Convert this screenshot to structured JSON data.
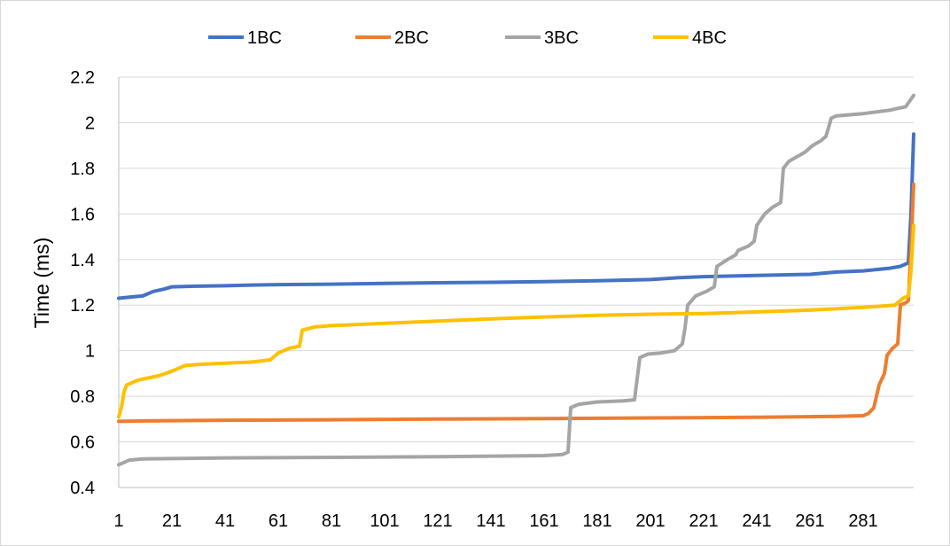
{
  "chart_data": {
    "type": "line",
    "title": "",
    "xlabel": "",
    "ylabel": "Time (ms)",
    "ylim": [
      0.4,
      2.2
    ],
    "yticks": [
      0.4,
      0.6,
      0.8,
      1,
      1.2,
      1.4,
      1.6,
      1.8,
      2,
      2.2
    ],
    "ytick_labels": [
      "0.4",
      "0.6",
      "0.8",
      "1",
      "1.2",
      "1.4",
      "1.6",
      "1.8",
      "2",
      "2.2"
    ],
    "xlim": [
      1,
      300
    ],
    "xticks": [
      1,
      21,
      41,
      61,
      81,
      101,
      121,
      141,
      161,
      181,
      201,
      221,
      241,
      261,
      281
    ],
    "xtick_labels": [
      "1",
      "21",
      "41",
      "61",
      "81",
      "101",
      "121",
      "141",
      "161",
      "181",
      "201",
      "221",
      "241",
      "261",
      "281"
    ],
    "grid": "horizontal",
    "legend_position": "top",
    "series": [
      {
        "name": "1BC",
        "color": "#4472c4",
        "points": [
          [
            1,
            1.23
          ],
          [
            5,
            1.235
          ],
          [
            10,
            1.24
          ],
          [
            14,
            1.26
          ],
          [
            18,
            1.27
          ],
          [
            21,
            1.28
          ],
          [
            30,
            1.283
          ],
          [
            41,
            1.285
          ],
          [
            51,
            1.288
          ],
          [
            61,
            1.29
          ],
          [
            81,
            1.292
          ],
          [
            101,
            1.295
          ],
          [
            121,
            1.298
          ],
          [
            141,
            1.3
          ],
          [
            161,
            1.303
          ],
          [
            181,
            1.307
          ],
          [
            201,
            1.312
          ],
          [
            211,
            1.32
          ],
          [
            221,
            1.325
          ],
          [
            241,
            1.33
          ],
          [
            261,
            1.335
          ],
          [
            271,
            1.345
          ],
          [
            281,
            1.35
          ],
          [
            291,
            1.362
          ],
          [
            295,
            1.37
          ],
          [
            298,
            1.385
          ],
          [
            299,
            1.6
          ],
          [
            300,
            1.95
          ]
        ]
      },
      {
        "name": "2BC",
        "color": "#ed7d31",
        "points": [
          [
            1,
            0.69
          ],
          [
            10,
            0.692
          ],
          [
            41,
            0.695
          ],
          [
            81,
            0.697
          ],
          [
            121,
            0.7
          ],
          [
            161,
            0.702
          ],
          [
            201,
            0.705
          ],
          [
            241,
            0.708
          ],
          [
            271,
            0.712
          ],
          [
            281,
            0.715
          ],
          [
            283,
            0.725
          ],
          [
            285,
            0.75
          ],
          [
            287,
            0.85
          ],
          [
            289,
            0.9
          ],
          [
            290,
            0.98
          ],
          [
            292,
            1.01
          ],
          [
            294,
            1.03
          ],
          [
            295,
            1.2
          ],
          [
            297,
            1.21
          ],
          [
            298,
            1.22
          ],
          [
            299,
            1.45
          ],
          [
            300,
            1.73
          ]
        ]
      },
      {
        "name": "3BC",
        "color": "#a5a5a5",
        "points": [
          [
            1,
            0.5
          ],
          [
            3,
            0.51
          ],
          [
            5,
            0.52
          ],
          [
            10,
            0.525
          ],
          [
            41,
            0.53
          ],
          [
            81,
            0.532
          ],
          [
            121,
            0.535
          ],
          [
            161,
            0.54
          ],
          [
            168,
            0.545
          ],
          [
            170,
            0.555
          ],
          [
            171,
            0.75
          ],
          [
            174,
            0.765
          ],
          [
            181,
            0.775
          ],
          [
            191,
            0.78
          ],
          [
            195,
            0.785
          ],
          [
            197,
            0.97
          ],
          [
            200,
            0.985
          ],
          [
            205,
            0.99
          ],
          [
            210,
            1.0
          ],
          [
            213,
            1.03
          ],
          [
            214,
            1.1
          ],
          [
            215,
            1.2
          ],
          [
            218,
            1.24
          ],
          [
            222,
            1.26
          ],
          [
            225,
            1.28
          ],
          [
            226,
            1.37
          ],
          [
            230,
            1.4
          ],
          [
            233,
            1.42
          ],
          [
            234,
            1.44
          ],
          [
            238,
            1.46
          ],
          [
            240,
            1.48
          ],
          [
            241,
            1.55
          ],
          [
            244,
            1.6
          ],
          [
            247,
            1.63
          ],
          [
            250,
            1.65
          ],
          [
            251,
            1.8
          ],
          [
            253,
            1.83
          ],
          [
            256,
            1.85
          ],
          [
            259,
            1.87
          ],
          [
            262,
            1.9
          ],
          [
            265,
            1.92
          ],
          [
            267,
            1.94
          ],
          [
            269,
            2.02
          ],
          [
            271,
            2.03
          ],
          [
            281,
            2.04
          ],
          [
            291,
            2.055
          ],
          [
            297,
            2.07
          ],
          [
            300,
            2.12
          ]
        ]
      },
      {
        "name": "4BC",
        "color": "#ffc000",
        "points": [
          [
            1,
            0.71
          ],
          [
            2,
            0.75
          ],
          [
            3,
            0.82
          ],
          [
            4,
            0.85
          ],
          [
            8,
            0.87
          ],
          [
            12,
            0.88
          ],
          [
            16,
            0.89
          ],
          [
            21,
            0.91
          ],
          [
            23,
            0.92
          ],
          [
            26,
            0.935
          ],
          [
            31,
            0.94
          ],
          [
            41,
            0.945
          ],
          [
            51,
            0.95
          ],
          [
            58,
            0.96
          ],
          [
            61,
            0.99
          ],
          [
            65,
            1.01
          ],
          [
            69,
            1.02
          ],
          [
            70,
            1.09
          ],
          [
            75,
            1.105
          ],
          [
            81,
            1.11
          ],
          [
            101,
            1.12
          ],
          [
            121,
            1.13
          ],
          [
            141,
            1.14
          ],
          [
            161,
            1.148
          ],
          [
            181,
            1.155
          ],
          [
            201,
            1.16
          ],
          [
            221,
            1.163
          ],
          [
            241,
            1.17
          ],
          [
            261,
            1.178
          ],
          [
            281,
            1.19
          ],
          [
            293,
            1.2
          ],
          [
            296,
            1.23
          ],
          [
            298,
            1.24
          ],
          [
            299,
            1.35
          ],
          [
            300,
            1.55
          ]
        ]
      }
    ]
  }
}
